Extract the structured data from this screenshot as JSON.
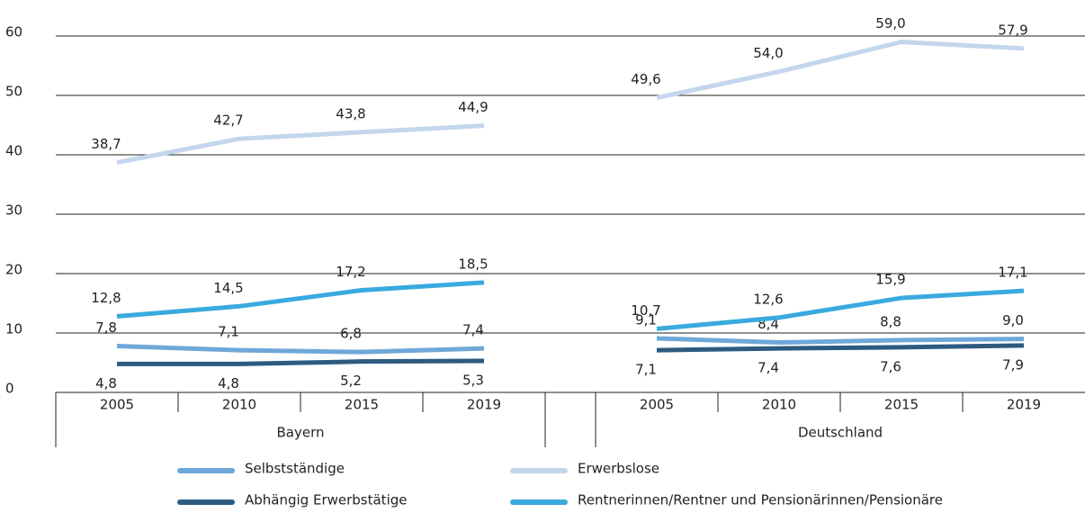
{
  "chart_data": {
    "type": "line",
    "categories": [
      "2005",
      "2010",
      "2015",
      "2019",
      null,
      "2005",
      "2010",
      "2015",
      "2019"
    ],
    "groups": [
      "Bayern",
      "Deutschland"
    ],
    "series": [
      {
        "name": "Selbstständige",
        "color": "#6ea8d9",
        "values": [
          7.8,
          7.1,
          6.8,
          7.4,
          null,
          9.1,
          8.4,
          8.8,
          9.0
        ],
        "value_labels": [
          "7,8",
          "7,1",
          "6,8",
          "7,4",
          null,
          "9,1",
          "8,4",
          "8,8",
          "9,0"
        ]
      },
      {
        "name": "Abhängig Erwerbstätige",
        "color": "#2d5b80",
        "values": [
          4.8,
          4.8,
          5.2,
          5.3,
          null,
          7.1,
          7.4,
          7.6,
          7.9
        ],
        "value_labels": [
          "4,8",
          "4,8",
          "5,2",
          "5,3",
          null,
          "7,1",
          "7,4",
          "7,6",
          "7,9"
        ]
      },
      {
        "name": "Erwerbslose",
        "color": "#c3d6ec",
        "values": [
          38.7,
          42.7,
          43.8,
          44.9,
          null,
          49.6,
          54.0,
          59.0,
          57.9
        ],
        "value_labels": [
          "38,7",
          "42,7",
          "43,8",
          "44,9",
          null,
          "49,6",
          "54,0",
          "59,0",
          "57,9"
        ]
      },
      {
        "name": "Rentnerinnen/Rentner und Pensionärinnen/Pensionäre",
        "color": "#3aaade",
        "values": [
          12.8,
          14.5,
          17.2,
          18.5,
          null,
          10.7,
          12.6,
          15.9,
          17.1
        ],
        "value_labels": [
          "12,8",
          "14,5",
          "17,2",
          "18,5",
          null,
          "10,7",
          "12,6",
          "15,9",
          "17,1"
        ]
      }
    ],
    "ylim": [
      0,
      60
    ],
    "yticks": [
      0,
      10,
      20,
      30,
      40,
      50,
      60
    ],
    "grid": true
  }
}
